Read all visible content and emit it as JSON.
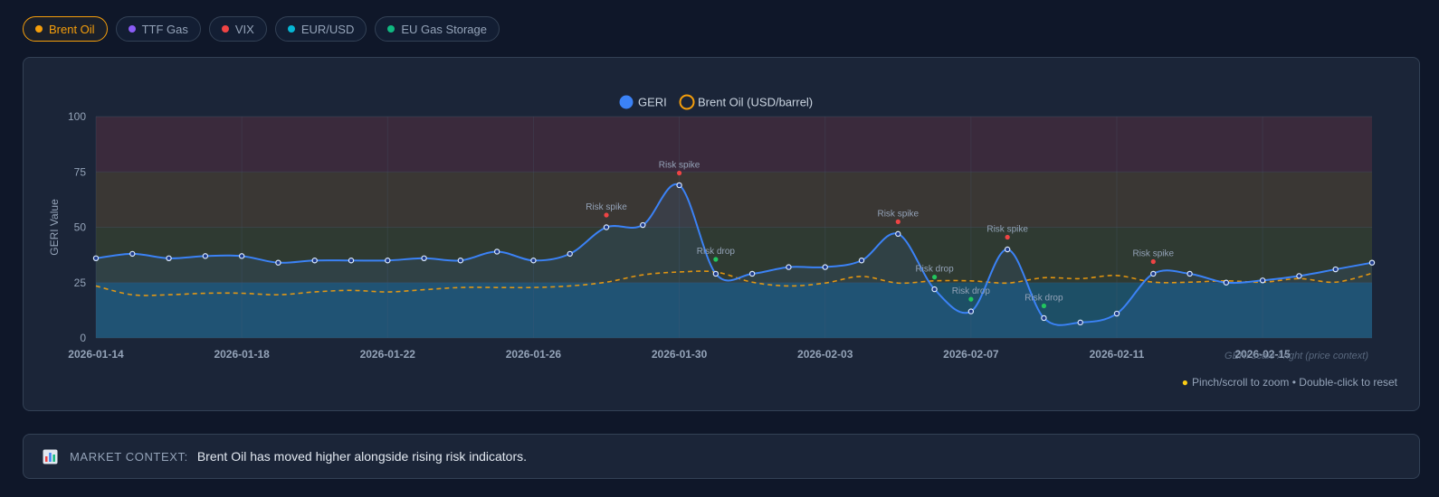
{
  "filters": [
    {
      "label": "Brent Oil",
      "color": "#f59e0b",
      "active": true
    },
    {
      "label": "TTF Gas",
      "color": "#8b5cf6",
      "active": false
    },
    {
      "label": "VIX",
      "color": "#ef4444",
      "active": false
    },
    {
      "label": "EUR/USD",
      "color": "#06b6d4",
      "active": false
    },
    {
      "label": "EU Gas Storage",
      "color": "#10b981",
      "active": false
    }
  ],
  "hint": "Pinch/scroll to zoom • Double-click to reset",
  "context": {
    "label": "MARKET CONTEXT:",
    "text": "Brent Oil has moved higher alongside rising risk indicators."
  },
  "chart_data": {
    "type": "line",
    "ylabel": "GERI Value",
    "ylim": [
      0,
      100
    ],
    "yticks": [
      0,
      25,
      50,
      75,
      100
    ],
    "x_tick_labels": [
      "2026-01-14",
      "2026-01-18",
      "2026-01-22",
      "2026-01-26",
      "2026-01-30",
      "2026-02-03",
      "2026-02-07",
      "2026-02-11",
      "2026-02-15"
    ],
    "watermark": "GERI scale / right (price context)",
    "zones": [
      {
        "from": 0,
        "to": 25,
        "color": "#1d4f66"
      },
      {
        "from": 25,
        "to": 50,
        "color": "#2f3a32"
      },
      {
        "from": 50,
        "to": 75,
        "color": "#3a3734"
      },
      {
        "from": 75,
        "to": 100,
        "color": "#3a2a3c"
      }
    ],
    "x": [
      "2026-01-14",
      "2026-01-15",
      "2026-01-16",
      "2026-01-17",
      "2026-01-18",
      "2026-01-19",
      "2026-01-20",
      "2026-01-21",
      "2026-01-22",
      "2026-01-23",
      "2026-01-24",
      "2026-01-25",
      "2026-01-26",
      "2026-01-27",
      "2026-01-28",
      "2026-01-29",
      "2026-01-30",
      "2026-01-31",
      "2026-02-01",
      "2026-02-02",
      "2026-02-03",
      "2026-02-04",
      "2026-02-05",
      "2026-02-06",
      "2026-02-07",
      "2026-02-08",
      "2026-02-09",
      "2026-02-10",
      "2026-02-11",
      "2026-02-12",
      "2026-02-13",
      "2026-02-14",
      "2026-02-15",
      "2026-02-16",
      "2026-02-17",
      "2026-02-18"
    ],
    "series": [
      {
        "name": "GERI",
        "color": "#3b82f6",
        "values": [
          36,
          38,
          36,
          37,
          37,
          34,
          35,
          35,
          35,
          36,
          35,
          39,
          35,
          38,
          50,
          51,
          69,
          29,
          29,
          32,
          32,
          35,
          47,
          22,
          12,
          40,
          9,
          7,
          11,
          29,
          29,
          25,
          26,
          28,
          31,
          34
        ]
      },
      {
        "name": "Brent Oil (USD/barrel)",
        "color": "#f59e0b",
        "dashed": true,
        "values": [
          23.5,
          19.5,
          19.5,
          20.2,
          20.2,
          19.5,
          20.8,
          21.5,
          20.8,
          21.8,
          22.8,
          22.8,
          22.8,
          23.5,
          25.2,
          28.5,
          29.8,
          29.8,
          25.2,
          23.5,
          24.8,
          27.8,
          24.8,
          25.8,
          25.8,
          24.8,
          27.2,
          26.8,
          28.2,
          25.2,
          25.2,
          25.8,
          25.2,
          26.8,
          25.2,
          29.2
        ]
      }
    ],
    "annotations": [
      {
        "date": "2026-01-28",
        "y": 55.5,
        "label": "Risk spike",
        "type": "spike"
      },
      {
        "date": "2026-01-30",
        "y": 74.5,
        "label": "Risk spike",
        "type": "spike"
      },
      {
        "date": "2026-01-31",
        "y": 35.5,
        "label": "Risk drop",
        "type": "drop"
      },
      {
        "date": "2026-02-05",
        "y": 52.5,
        "label": "Risk spike",
        "type": "spike"
      },
      {
        "date": "2026-02-06",
        "y": 27.5,
        "label": "Risk drop",
        "type": "drop"
      },
      {
        "date": "2026-02-07",
        "y": 17.5,
        "label": "Risk drop",
        "type": "drop"
      },
      {
        "date": "2026-02-08",
        "y": 45.5,
        "label": "Risk spike",
        "type": "spike"
      },
      {
        "date": "2026-02-09",
        "y": 14.5,
        "label": "Risk drop",
        "type": "drop"
      },
      {
        "date": "2026-02-12",
        "y": 34.5,
        "label": "Risk spike",
        "type": "spike"
      }
    ]
  }
}
